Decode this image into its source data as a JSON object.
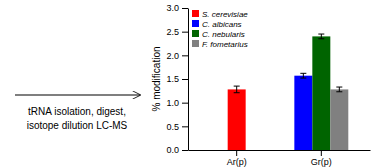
{
  "chart_data": {
    "type": "bar",
    "ylabel": "% modification",
    "annotations": [
      "tRNA isolation, digest,",
      "isotope dilution LC-MS"
    ],
    "categories": [
      "Ar(p)",
      "Gr(p)"
    ],
    "series": [
      {
        "name": "S. cerevisiae",
        "color": "#ff0000",
        "values": [
          1.28,
          null
        ],
        "errors": [
          0.07,
          null
        ]
      },
      {
        "name": "C. albicans",
        "color": "#0000ff",
        "values": [
          null,
          1.57
        ],
        "errors": [
          null,
          0.05
        ]
      },
      {
        "name": "C. nebularis",
        "color": "#006400",
        "values": [
          null,
          2.4
        ],
        "errors": [
          null,
          0.05
        ]
      },
      {
        "name": "F. fometarius",
        "color": "#808080",
        "values": [
          null,
          1.28
        ],
        "errors": [
          null,
          0.05
        ]
      }
    ],
    "ylim": [
      0,
      3.0
    ],
    "yticks": [
      {
        "value": 0,
        "label": "0.0"
      },
      0.5,
      {
        "value": 1.0,
        "label": "1.0"
      },
      1.5,
      {
        "value": 2.0,
        "label": "2.0"
      },
      2.5,
      {
        "value": 3.0,
        "label": "3.0"
      }
    ],
    "legend": "upper left",
    "grid": false
  }
}
